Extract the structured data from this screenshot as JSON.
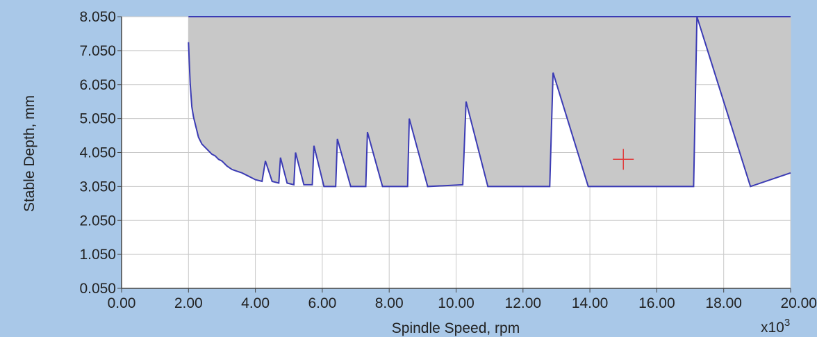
{
  "chart_data": {
    "type": "area",
    "xlabel": "Spindle Speed, rpm",
    "ylabel": "Stable Depth, mm",
    "x_multiplier_label": "x10",
    "x_multiplier_exp": "3",
    "xlim": [
      0,
      20
    ],
    "ylim": [
      0.05,
      8.05
    ],
    "x_ticks": [
      "0.00",
      "2.00",
      "4.00",
      "6.00",
      "8.00",
      "10.00",
      "12.00",
      "14.00",
      "16.00",
      "18.00",
      "20.00"
    ],
    "y_ticks": [
      "8.050",
      "7.050",
      "6.050",
      "5.050",
      "4.050",
      "3.050",
      "2.050",
      "1.050",
      "0.050"
    ],
    "grid": true,
    "colors": {
      "background": "#a9c8e8",
      "plot_area": "#ffffff",
      "unstable_fill": "#c8c8c8",
      "boundary_line": "#3b3bb4",
      "grid": "#c8c8c8",
      "marker": "#e03c3c"
    },
    "series": [
      {
        "x": [
          2.0,
          2.05,
          2.1,
          2.15,
          2.2,
          2.3,
          2.4,
          2.5,
          2.6,
          2.7,
          2.8,
          2.9,
          3.0,
          3.15,
          3.3,
          3.45,
          3.6,
          3.8,
          4.0,
          4.2,
          4.3,
          4.5,
          4.7,
          4.75,
          4.95,
          5.15,
          5.2,
          5.45,
          5.7,
          5.75,
          6.05,
          6.4,
          6.45,
          6.85,
          7.3,
          7.35,
          7.8,
          8.55,
          8.6,
          9.15,
          10.2,
          10.3,
          10.95,
          12.8,
          12.9,
          13.95,
          17.1,
          17.2,
          18.8,
          20.0
        ],
        "y": [
          7.3,
          6.1,
          5.4,
          5.1,
          4.9,
          4.5,
          4.3,
          4.2,
          4.1,
          4.0,
          3.95,
          3.85,
          3.8,
          3.65,
          3.55,
          3.5,
          3.45,
          3.35,
          3.25,
          3.2,
          3.8,
          3.2,
          3.15,
          3.9,
          3.15,
          3.1,
          4.05,
          3.1,
          3.1,
          4.25,
          3.05,
          3.05,
          4.45,
          3.05,
          3.05,
          4.65,
          3.05,
          3.05,
          5.05,
          3.05,
          3.1,
          5.55,
          3.05,
          3.05,
          6.4,
          3.05,
          3.05,
          8.05,
          3.05,
          3.45
        ]
      }
    ],
    "marker": {
      "x": 15.0,
      "y": 3.85,
      "symbol": "+"
    }
  }
}
